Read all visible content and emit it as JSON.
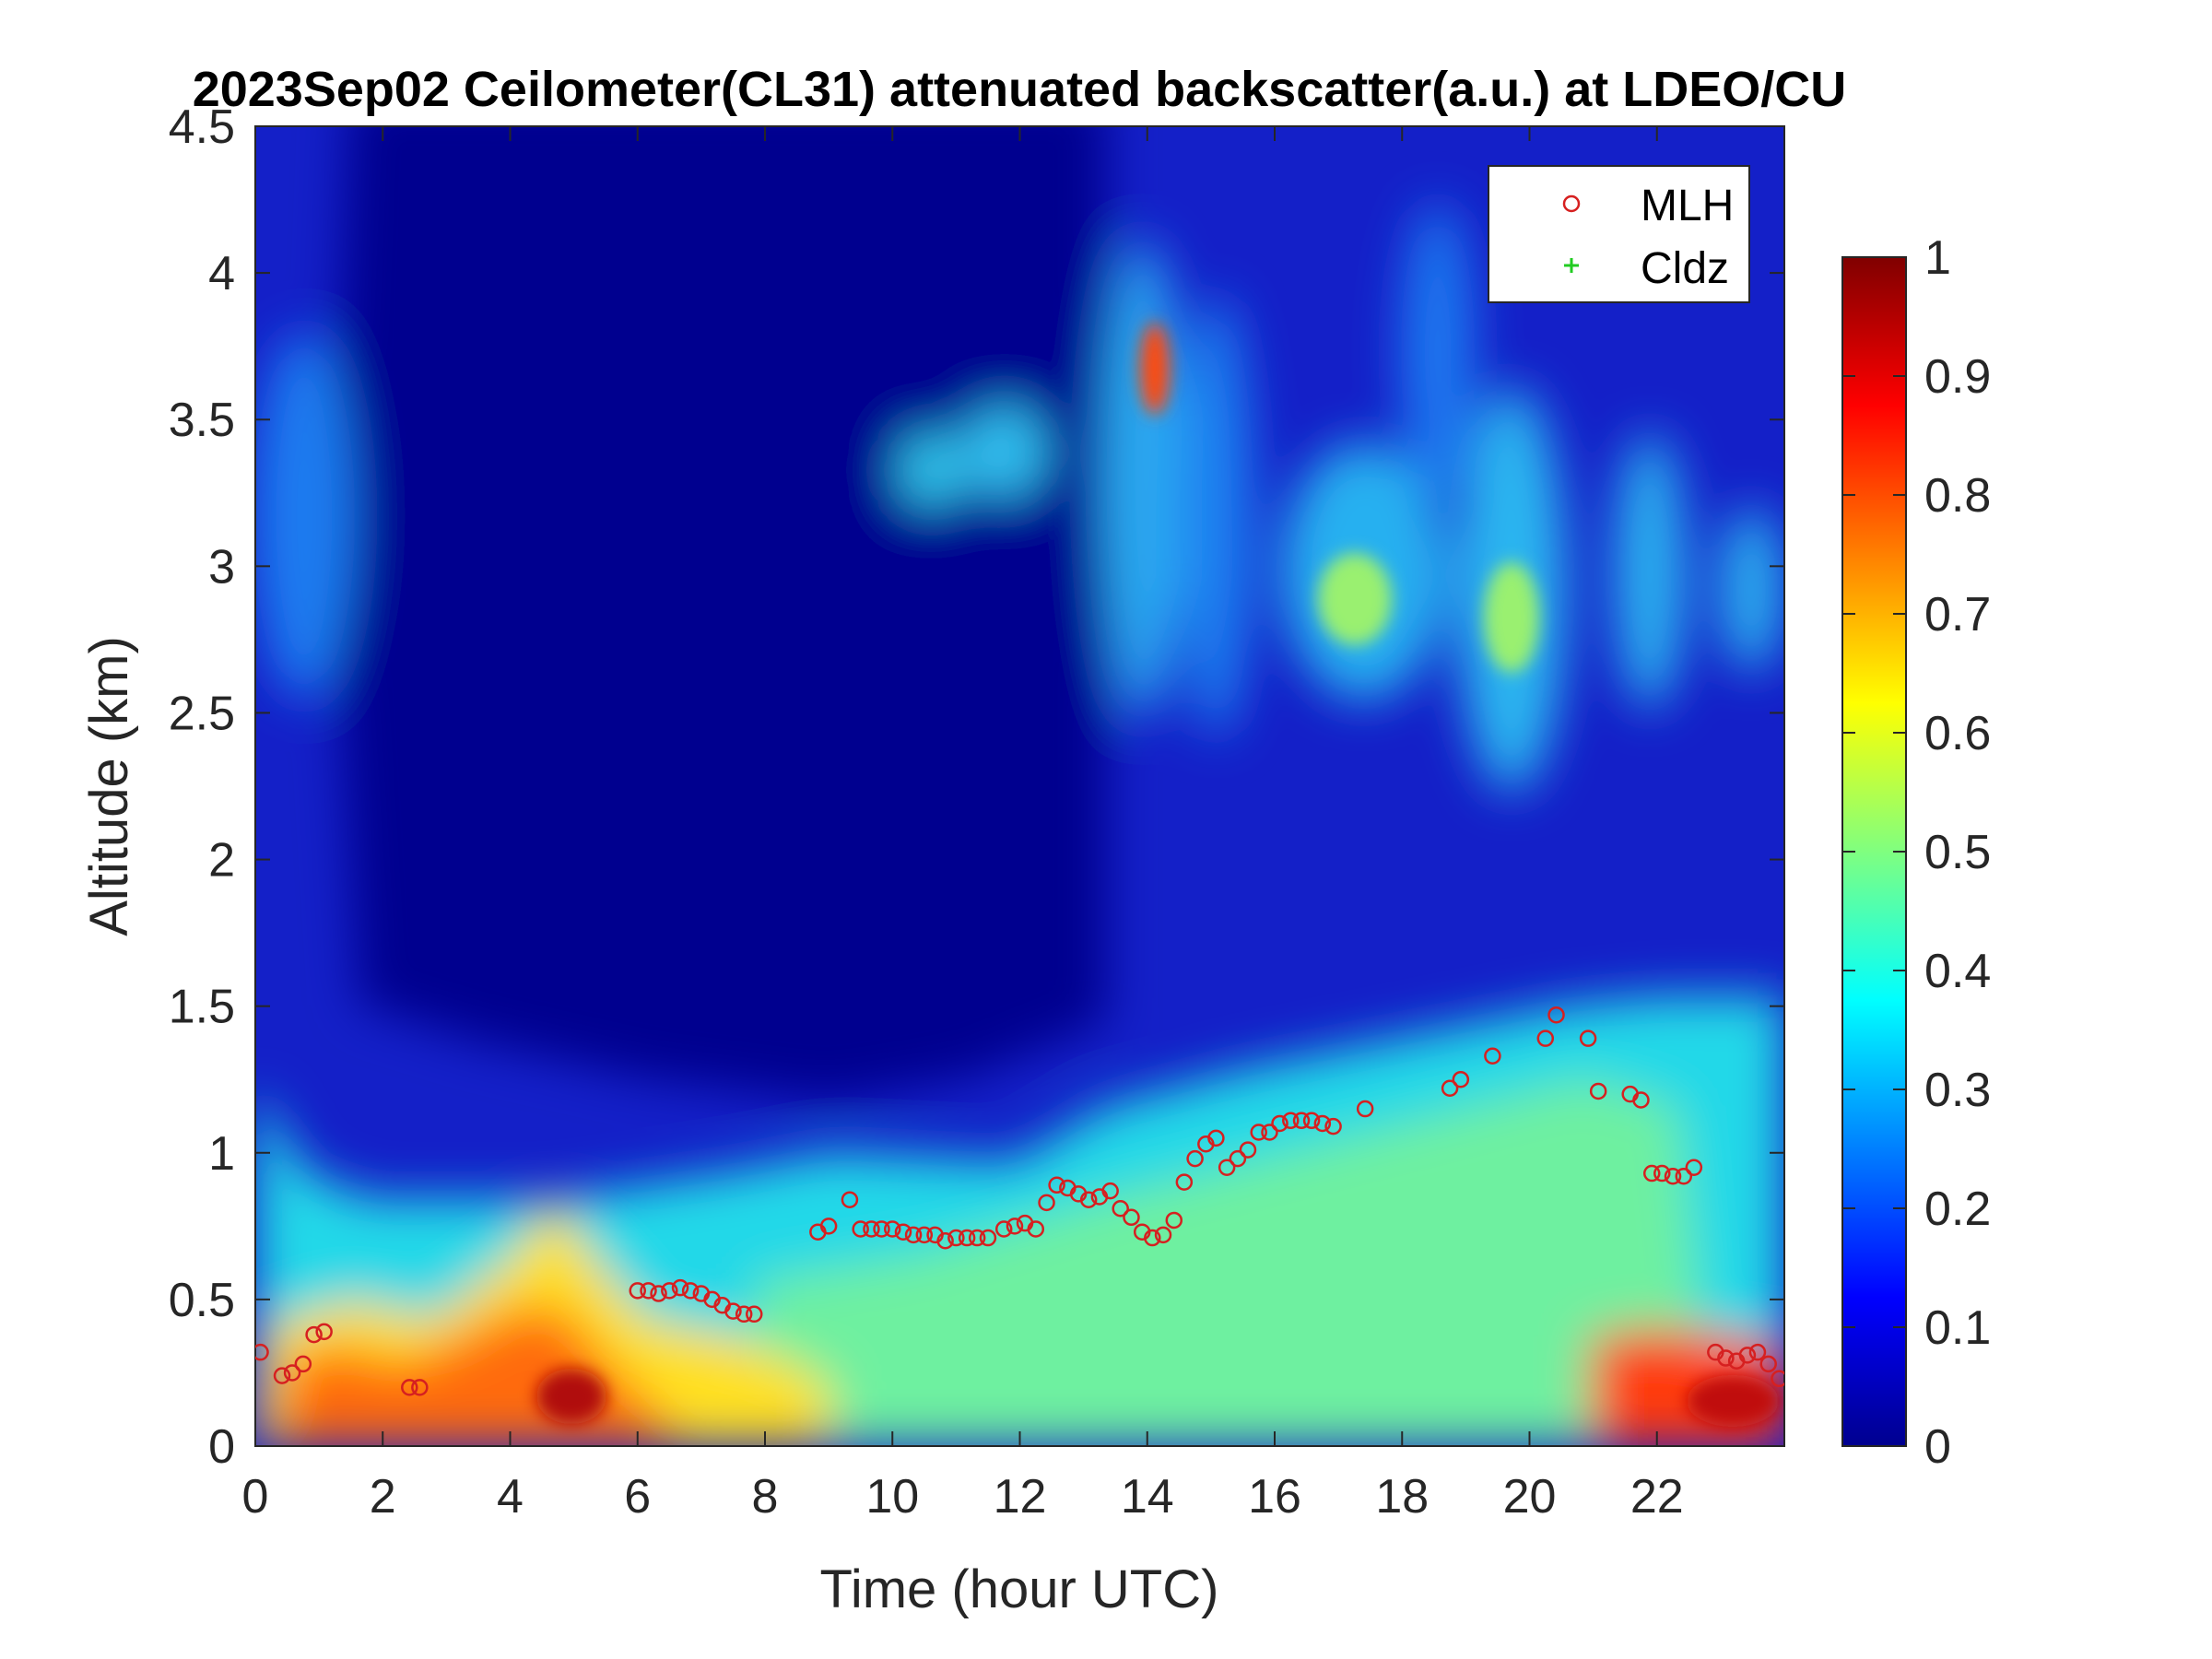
{
  "chart_data": {
    "type": "heatmap",
    "title": "2023Sep02 Ceilometer(CL31) attenuated backscatter(a.u.) at LDEO/CU",
    "xlabel": "Time (hour UTC)",
    "ylabel": "Altitude (km)",
    "xlim": [
      0,
      24
    ],
    "ylim": [
      0,
      4.5
    ],
    "x_ticks": [
      0,
      2,
      4,
      6,
      8,
      10,
      12,
      14,
      16,
      18,
      20,
      22
    ],
    "x_tick_labels": [
      "0",
      "2",
      "4",
      "6",
      "8",
      "10",
      "12",
      "14",
      "16",
      "18",
      "20",
      "22"
    ],
    "y_ticks": [
      0,
      0.5,
      1,
      1.5,
      2,
      2.5,
      3,
      3.5,
      4,
      4.5
    ],
    "y_tick_labels": [
      "0",
      "0.5",
      "1",
      "1.5",
      "2",
      "2.5",
      "3",
      "3.5",
      "4",
      "4.5"
    ],
    "colormap": "jet",
    "color_range": [
      0,
      1
    ],
    "colorbar_ticks": [
      0,
      0.1,
      0.2,
      0.3,
      0.4,
      0.5,
      0.6,
      0.7,
      0.8,
      0.9,
      1
    ],
    "colorbar_tick_labels": [
      "0",
      "0.1",
      "0.2",
      "0.3",
      "0.4",
      "0.5",
      "0.6",
      "0.7",
      "0.8",
      "0.9",
      "1"
    ],
    "legend": {
      "placement": "top-right",
      "entries": [
        {
          "label": "MLH",
          "marker": "circle",
          "color": "#d62020"
        },
        {
          "label": "Cldz",
          "marker": "plus",
          "color": "#22cc22"
        }
      ]
    },
    "series": [
      {
        "name": "MLH",
        "marker": "circle",
        "color": "#d62020",
        "x": [
          0.08,
          0.42,
          0.58,
          0.75,
          0.92,
          1.08,
          2.42,
          2.58,
          6.0,
          6.17,
          6.33,
          6.5,
          6.67,
          6.83,
          7.0,
          7.17,
          7.33,
          7.5,
          7.67,
          7.83,
          8.83,
          9.0,
          9.33,
          9.5,
          9.67,
          9.83,
          10.0,
          10.17,
          10.33,
          10.5,
          10.67,
          10.83,
          11.0,
          11.17,
          11.33,
          11.5,
          11.75,
          11.92,
          12.08,
          12.25,
          12.42,
          12.58,
          12.75,
          12.92,
          13.08,
          13.25,
          13.42,
          13.58,
          13.75,
          13.92,
          14.08,
          14.25,
          14.42,
          14.58,
          14.75,
          14.92,
          15.08,
          15.25,
          15.42,
          15.58,
          15.75,
          15.92,
          16.08,
          16.25,
          16.42,
          16.58,
          16.75,
          16.92,
          17.42,
          18.75,
          18.92,
          19.42,
          20.25,
          20.42,
          20.92,
          21.08,
          21.58,
          21.75,
          21.92,
          22.08,
          22.25,
          22.42,
          22.58,
          22.92,
          23.08,
          23.25,
          23.42,
          23.58,
          23.75,
          23.92
        ],
        "y": [
          0.32,
          0.24,
          0.25,
          0.28,
          0.38,
          0.39,
          0.2,
          0.2,
          0.53,
          0.53,
          0.52,
          0.53,
          0.54,
          0.53,
          0.52,
          0.5,
          0.48,
          0.46,
          0.45,
          0.45,
          0.73,
          0.75,
          0.84,
          0.74,
          0.74,
          0.74,
          0.74,
          0.73,
          0.72,
          0.72,
          0.72,
          0.7,
          0.71,
          0.71,
          0.71,
          0.71,
          0.74,
          0.75,
          0.76,
          0.74,
          0.83,
          0.89,
          0.88,
          0.86,
          0.84,
          0.85,
          0.87,
          0.81,
          0.78,
          0.73,
          0.71,
          0.72,
          0.77,
          0.9,
          0.98,
          1.03,
          1.05,
          0.95,
          0.98,
          1.01,
          1.07,
          1.07,
          1.1,
          1.11,
          1.11,
          1.11,
          1.1,
          1.09,
          1.15,
          1.22,
          1.25,
          1.33,
          1.39,
          1.47,
          1.39,
          1.21,
          1.2,
          1.18,
          0.93,
          0.93,
          0.92,
          0.92,
          0.95,
          0.32,
          0.3,
          0.29,
          0.31,
          0.32,
          0.28,
          0.23
        ]
      },
      {
        "name": "Cldz",
        "marker": "plus",
        "color": "#22cc22",
        "x": [],
        "y": []
      }
    ]
  }
}
